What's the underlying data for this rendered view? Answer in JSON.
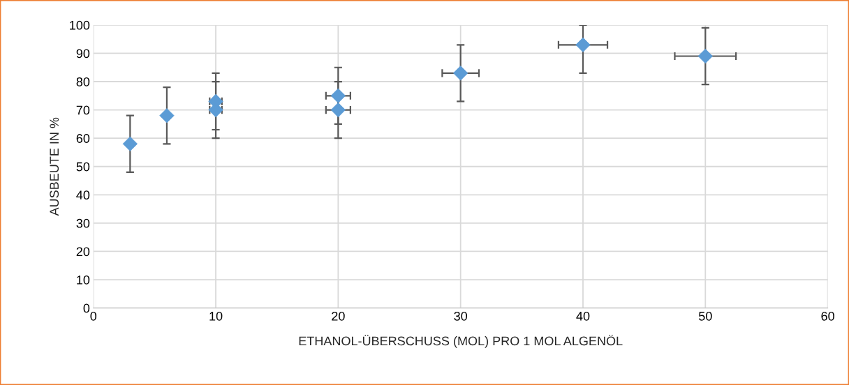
{
  "chart_data": {
    "type": "scatter",
    "xlabel": "ETHANOL-ÜBERSCHUSS (MOL) PRO 1 MOL ALGENÖL",
    "ylabel": "AUSBEUTE IN %",
    "series": [
      {
        "color": "#5b9bd5",
        "x": [
          3,
          6,
          10,
          10,
          20,
          20,
          30,
          40,
          50
        ],
        "values": [
          58,
          68,
          73,
          70,
          75,
          70,
          83,
          93,
          89
        ],
        "errors": [
          10,
          10,
          10,
          10,
          10,
          10,
          10,
          [
            83,
            100
          ],
          10
        ],
        "xerrors": [
          null,
          null,
          0.5,
          0.5,
          1,
          1,
          1.5,
          2,
          2.5
        ]
      }
    ],
    "xlim": [
      0,
      60
    ],
    "xticks": [
      0,
      10,
      20,
      30,
      40,
      50,
      60
    ],
    "ylim": [
      0,
      100
    ],
    "yticks": [
      0,
      10,
      20,
      30,
      40,
      50,
      60,
      70,
      80,
      90,
      100
    ],
    "grid": true,
    "marker": "diamond"
  }
}
